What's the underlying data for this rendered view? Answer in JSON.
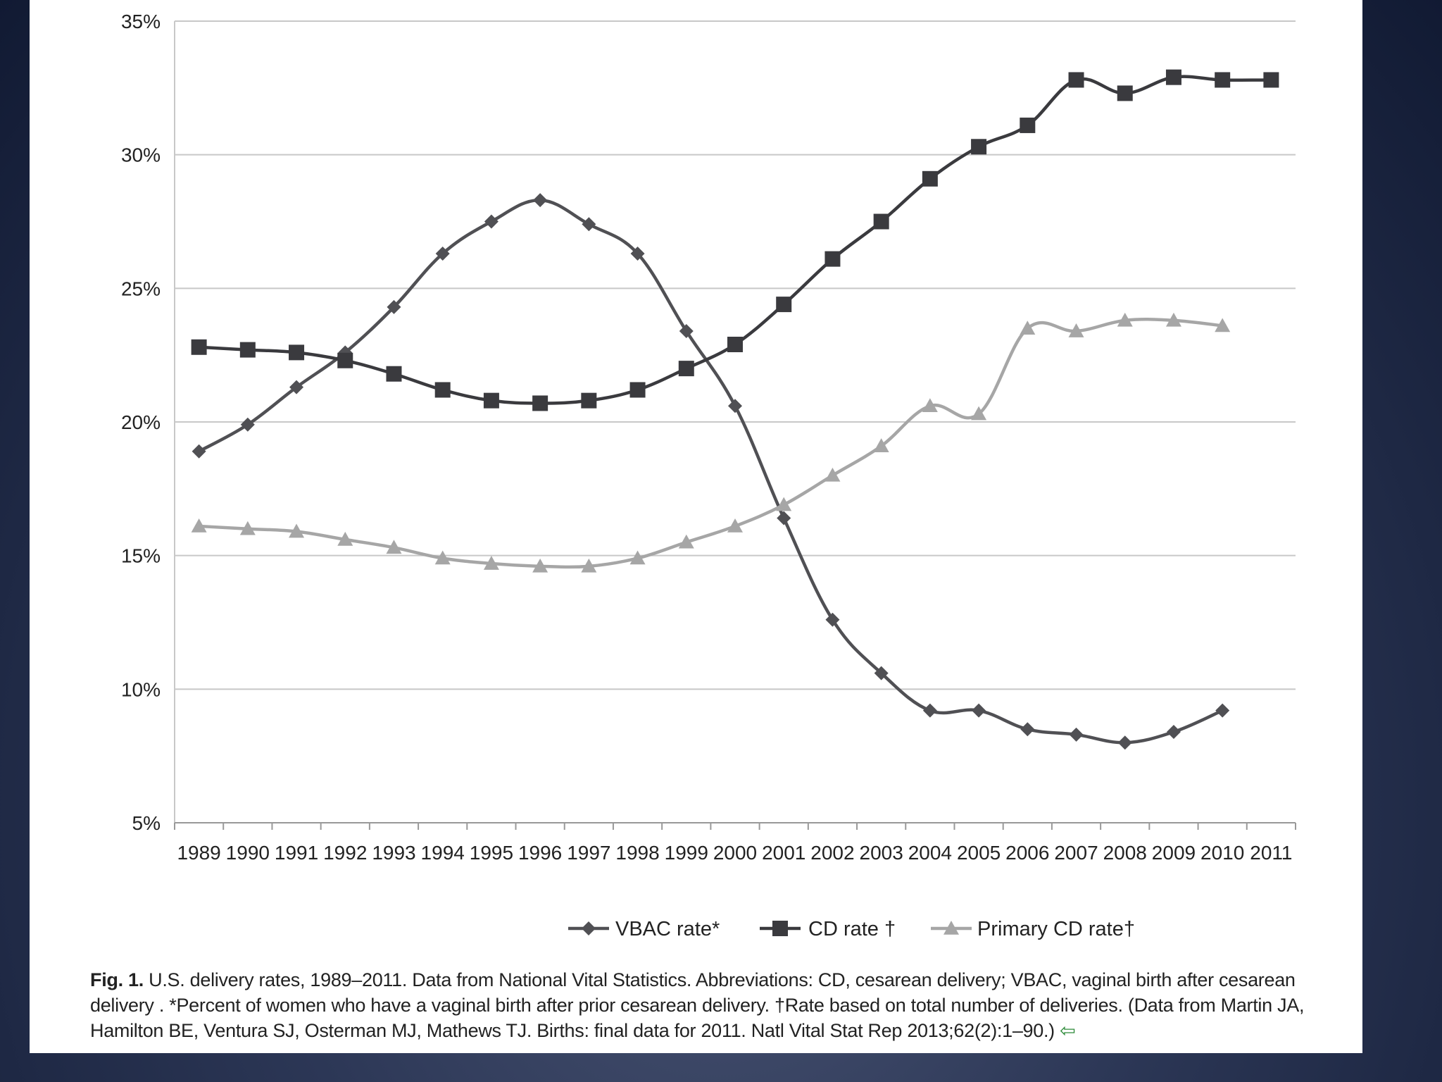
{
  "colors": {
    "background": "#1f2945",
    "vbac": "#505054",
    "cd": "#3a3a3e",
    "primary_cd": "#a6a6a6",
    "grid": "#c8c8c8",
    "caption_arrow": "#2e8b3a"
  },
  "chart_data": {
    "type": "line",
    "categories": [
      "1989",
      "1990",
      "1991",
      "1992",
      "1993",
      "1994",
      "1995",
      "1996",
      "1997",
      "1998",
      "1999",
      "2000",
      "2001",
      "2002",
      "2003",
      "2004",
      "2005",
      "2006",
      "2007",
      "2008",
      "2009",
      "2010",
      "2011"
    ],
    "y_ticks": [
      "5%",
      "10%",
      "15%",
      "20%",
      "25%",
      "30%",
      "35%"
    ],
    "ylim": [
      5,
      35
    ],
    "grid": true,
    "legend_position": "bottom",
    "series": [
      {
        "name": "VBAC rate*",
        "marker": "diamond",
        "values": [
          18.9,
          19.9,
          21.3,
          22.6,
          24.3,
          26.3,
          27.5,
          28.3,
          27.4,
          26.3,
          23.4,
          20.6,
          16.4,
          12.6,
          10.6,
          9.2,
          9.2,
          8.5,
          8.3,
          8.0,
          8.4,
          9.2,
          null
        ]
      },
      {
        "name": "CD rate †",
        "marker": "square",
        "values": [
          22.8,
          22.7,
          22.6,
          22.3,
          21.8,
          21.2,
          20.8,
          20.7,
          20.8,
          21.2,
          22.0,
          22.9,
          24.4,
          26.1,
          27.5,
          29.1,
          30.3,
          31.1,
          32.8,
          32.3,
          32.9,
          32.8,
          32.8
        ]
      },
      {
        "name": "Primary CD rate†",
        "marker": "triangle",
        "values": [
          16.1,
          16.0,
          15.9,
          15.6,
          15.3,
          14.9,
          14.7,
          14.6,
          14.6,
          14.9,
          15.5,
          16.1,
          16.9,
          18.0,
          19.1,
          20.6,
          20.3,
          23.5,
          23.4,
          23.8,
          23.8,
          23.6,
          null
        ]
      }
    ]
  },
  "caption": {
    "label": "Fig. 1.",
    "text": " U.S. delivery rates, 1989–2011. Data from National Vital Statistics. Abbreviations: CD, cesarean delivery; VBAC, vaginal birth after cesarean delivery . *Percent of women who have a vaginal birth after prior cesarean delivery. †Rate based on total number of deliveries. (Data from Martin JA, Hamilton BE, Ventura SJ, Osterman MJ, Mathews TJ. Births: final data for 2011. Natl Vital Stat Rep 2013;62(2):1–90.) ",
    "arrow": "⇦"
  }
}
